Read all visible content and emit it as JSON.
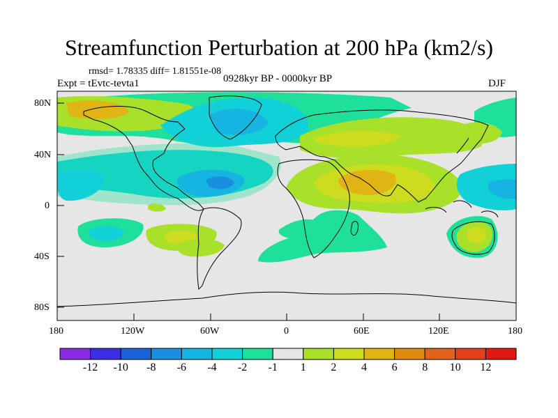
{
  "title": "Streamfunction Perturbation at 200 hPa (km2/s)",
  "stats": "rmsd= 1.78335 diff= 1.81551e-08",
  "expt": "Expt = tEvtc-tevta1",
  "period": "0928kyr BP - 0000kyr BP",
  "season": "DJF",
  "lat_ticks": [
    "80N",
    "40N",
    "0",
    "40S",
    "80S"
  ],
  "lon_ticks": [
    "180",
    "120W",
    "60W",
    "0",
    "60E",
    "120E",
    "180"
  ],
  "colorbar": {
    "labels": [
      "-12",
      "-10",
      "-8",
      "-6",
      "-4",
      "-2",
      "-1",
      "1",
      "2",
      "4",
      "6",
      "8",
      "10",
      "12"
    ],
    "colors": [
      "#8a2be2",
      "#3a2ee0",
      "#1b63d9",
      "#1a8fe0",
      "#16b4e0",
      "#12d0d8",
      "#1ee09a",
      "#e6e6e6",
      "#a8e02a",
      "#cddc1e",
      "#e0b414",
      "#e08a12",
      "#e0641a",
      "#e0401a",
      "#e01a12"
    ]
  },
  "field_colors": {
    "ocean_bg": "#e6e6e6",
    "coast": "#000000"
  }
}
